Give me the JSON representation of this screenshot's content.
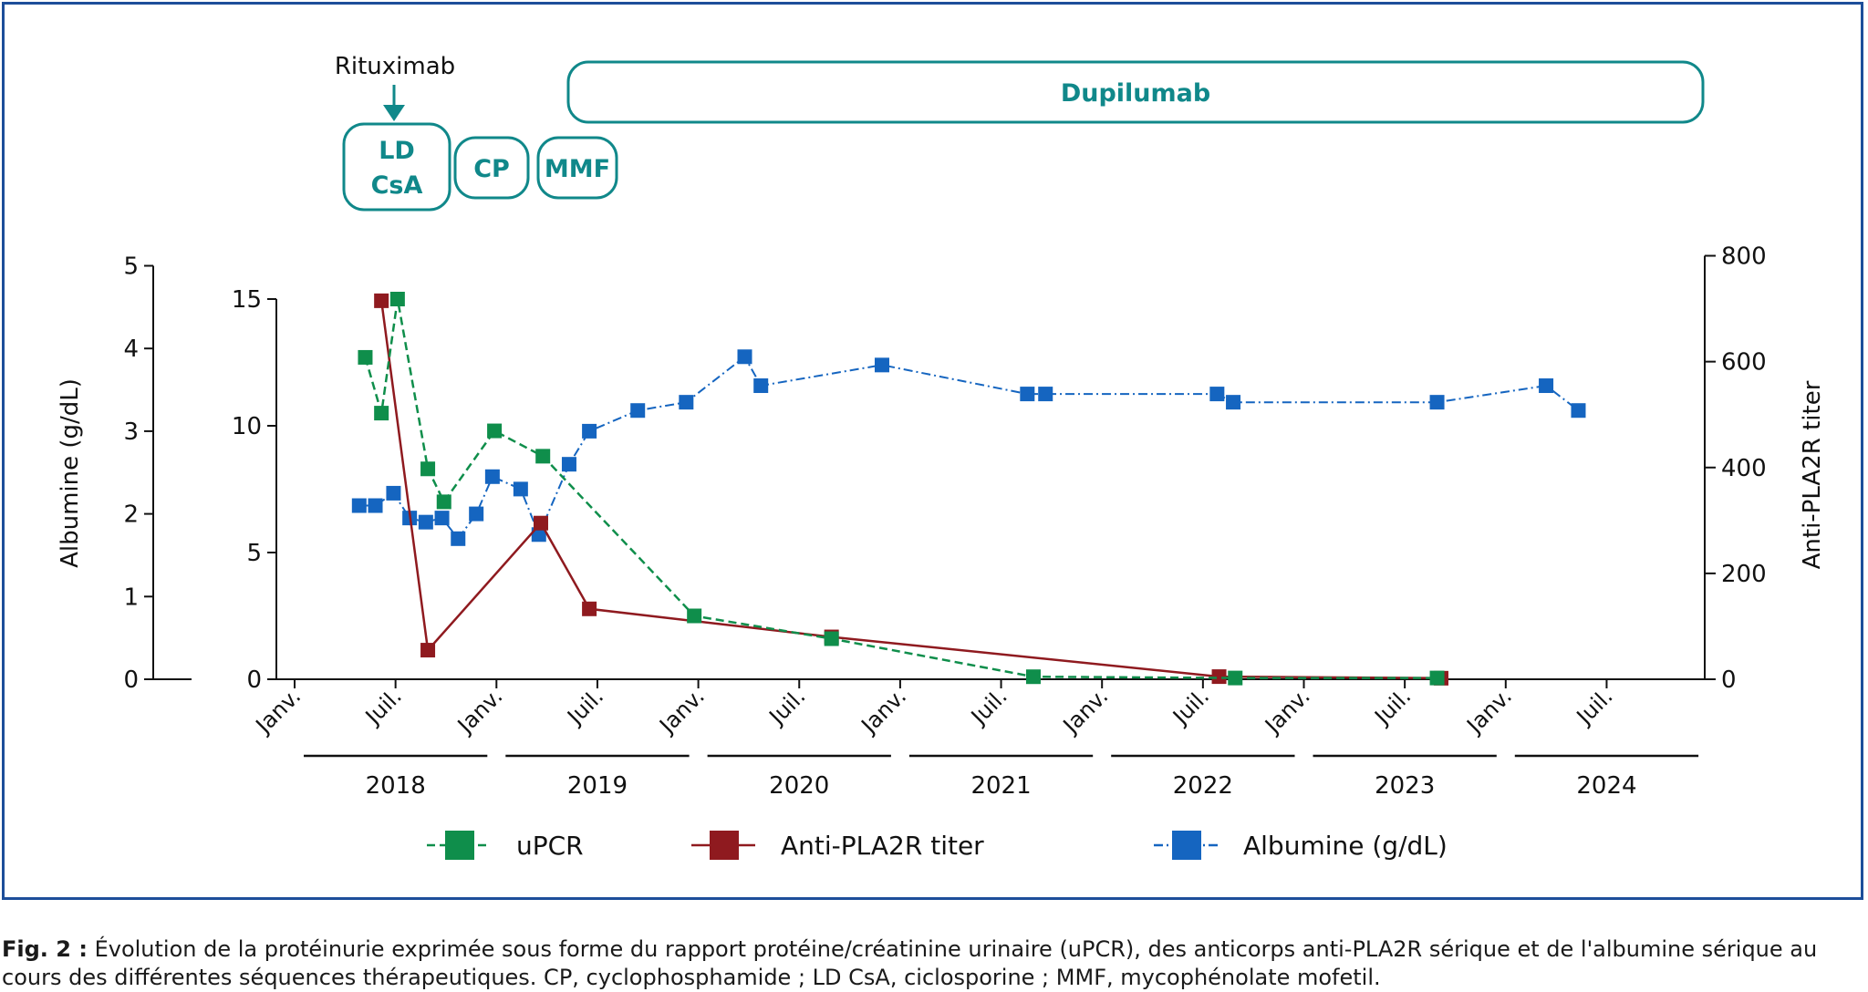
{
  "chart_data": {
    "type": "line",
    "x_axis": {
      "years": [
        "2018",
        "2019",
        "2020",
        "2021",
        "2022",
        "2023",
        "2024"
      ],
      "tick_labels": [
        "Janv.",
        "Juil."
      ],
      "range": [
        2018.0,
        2025.0
      ]
    },
    "left_axis_albumin": {
      "label": "Albumine (g/dL)",
      "range": [
        0,
        5
      ],
      "ticks": [
        "0",
        "1",
        "2",
        "3",
        "4",
        "5"
      ]
    },
    "left_axis_upcr": {
      "label": "",
      "range": [
        0,
        15
      ],
      "ticks": [
        "0",
        "5",
        "10",
        "15"
      ]
    },
    "right_axis": {
      "label": "Anti-PLA2R titer",
      "range": [
        0,
        800
      ],
      "ticks": [
        "0",
        "200",
        "400",
        "600",
        "800"
      ]
    },
    "series": [
      {
        "name": "uPCR",
        "axis": "left_upcr",
        "color": "#0f8e4b",
        "line_style": "dashed",
        "points": [
          [
            2018.35,
            12.7
          ],
          [
            2018.43,
            10.5
          ],
          [
            2018.51,
            15.0
          ],
          [
            2018.66,
            8.3
          ],
          [
            2018.74,
            7.0
          ],
          [
            2018.99,
            9.8
          ],
          [
            2019.23,
            8.8
          ],
          [
            2019.98,
            2.5
          ],
          [
            2020.66,
            1.6
          ],
          [
            2021.66,
            0.1
          ],
          [
            2022.66,
            0.05
          ],
          [
            2023.66,
            0.05
          ]
        ]
      },
      {
        "name": "Anti-PLA2R titer",
        "axis": "right",
        "color": "#8f1a1f",
        "line_style": "solid",
        "points": [
          [
            2018.43,
            715
          ],
          [
            2018.66,
            55
          ],
          [
            2019.22,
            295
          ],
          [
            2019.46,
            133
          ],
          [
            2020.66,
            80
          ],
          [
            2022.58,
            5
          ],
          [
            2023.68,
            2
          ]
        ]
      },
      {
        "name": "Albumine (g/dL)",
        "axis": "left_albumin",
        "color": "#1565c0",
        "line_style": "dashdot",
        "points": [
          [
            2018.32,
            2.1
          ],
          [
            2018.4,
            2.1
          ],
          [
            2018.49,
            2.25
          ],
          [
            2018.57,
            1.95
          ],
          [
            2018.65,
            1.9
          ],
          [
            2018.73,
            1.95
          ],
          [
            2018.81,
            1.7
          ],
          [
            2018.9,
            2.0
          ],
          [
            2018.98,
            2.45
          ],
          [
            2019.12,
            2.3
          ],
          [
            2019.21,
            1.75
          ],
          [
            2019.36,
            2.6
          ],
          [
            2019.46,
            3.0
          ],
          [
            2019.7,
            3.25
          ],
          [
            2019.94,
            3.35
          ],
          [
            2020.23,
            3.9
          ],
          [
            2020.31,
            3.55
          ],
          [
            2020.91,
            3.8
          ],
          [
            2021.63,
            3.45
          ],
          [
            2021.72,
            3.45
          ],
          [
            2022.57,
            3.45
          ],
          [
            2022.65,
            3.35
          ],
          [
            2023.66,
            3.35
          ],
          [
            2024.2,
            3.55
          ],
          [
            2024.36,
            3.25
          ]
        ]
      }
    ],
    "legend_placement": "bottom",
    "grid": false
  },
  "treatments": {
    "rituximab_label": "Rituximab",
    "boxes": [
      {
        "name": "ld-csa",
        "lines": [
          "LD",
          "CsA"
        ]
      },
      {
        "name": "cp",
        "lines": [
          "CP"
        ]
      },
      {
        "name": "mmf",
        "lines": [
          "MMF"
        ]
      },
      {
        "name": "dupilumab",
        "lines": [
          "Dupilumab"
        ]
      }
    ]
  },
  "colors": {
    "teal": "#10888a",
    "frame": "#1d4e9a"
  },
  "caption": {
    "label": "Fig. 2 :",
    "text": "Évolution de la protéinurie exprimée sous forme du rapport protéine/créatinine urinaire (uPCR), des anticorps anti-PLA2R sérique et de l'albumine sérique au cours des différentes séquences thérapeutiques. CP, cyclophosphamide ; LD CsA, ciclosporine ; MMF, mycophénolate mofetil."
  }
}
